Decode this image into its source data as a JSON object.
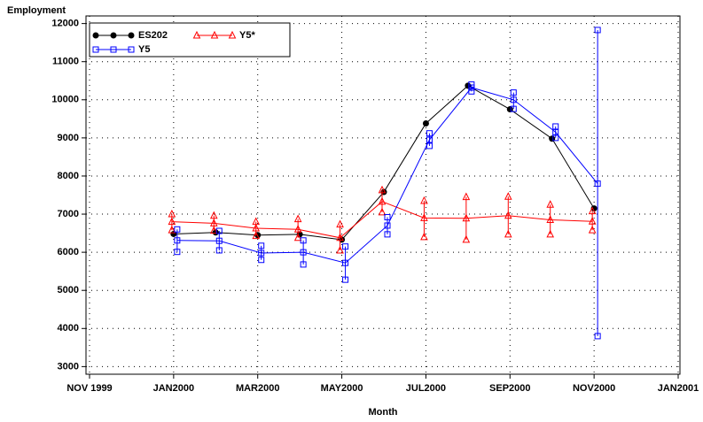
{
  "chart_data": {
    "type": "line",
    "y_label": "Employment",
    "x_label": "Month",
    "x": [
      "2000-01",
      "2000-02",
      "2000-03",
      "2000-04",
      "2000-05",
      "2000-06",
      "2000-07",
      "2000-08",
      "2000-09",
      "2000-10",
      "2000-11"
    ],
    "xlim": [
      "1999-11",
      "2001-01"
    ],
    "xticks": [
      {
        "value": "1999-11",
        "label": "NOV 1999"
      },
      {
        "value": "2000-01",
        "label": "JAN2000"
      },
      {
        "value": "2000-03",
        "label": "MAR2000"
      },
      {
        "value": "2000-05",
        "label": "MAY2000"
      },
      {
        "value": "2000-07",
        "label": "JUL2000"
      },
      {
        "value": "2000-09",
        "label": "SEP2000"
      },
      {
        "value": "2000-11",
        "label": "NOV2000"
      },
      {
        "value": "2001-01",
        "label": "JAN2001"
      }
    ],
    "ylim": [
      2800,
      12200
    ],
    "yticks": [
      3000,
      4000,
      5000,
      6000,
      7000,
      8000,
      9000,
      10000,
      11000,
      12000
    ],
    "grid": true,
    "series": [
      {
        "name": "ES202",
        "color": "#000000",
        "marker": "dot",
        "values": [
          6480,
          6520,
          6450,
          6470,
          6330,
          7580,
          9380,
          10370,
          9750,
          8980,
          7150
        ]
      },
      {
        "name": "Y5*",
        "color": "#ff0000",
        "marker": "triangle",
        "values": [
          6800,
          6760,
          6630,
          6600,
          6380,
          7330,
          6900,
          6890,
          6960,
          6850,
          6810
        ],
        "lower": [
          6580,
          6570,
          6430,
          6380,
          6050,
          7050,
          6400,
          6330,
          6470,
          6470,
          6580
        ],
        "upper": [
          7000,
          6960,
          6800,
          6870,
          6730,
          7630,
          7350,
          7450,
          7460,
          7250,
          7080
        ]
      },
      {
        "name": "Y5",
        "color": "#0000ff",
        "marker": "square",
        "values": [
          6310,
          6300,
          5980,
          6000,
          5720,
          6700,
          8950,
          10320,
          10000,
          9150,
          7800
        ],
        "lower": [
          6010,
          6050,
          5800,
          5680,
          5280,
          6470,
          8790,
          10220,
          9760,
          9000,
          3800
        ],
        "upper": [
          6600,
          6560,
          6170,
          6310,
          6150,
          6920,
          9120,
          10400,
          10190,
          9300,
          11830
        ]
      }
    ]
  }
}
